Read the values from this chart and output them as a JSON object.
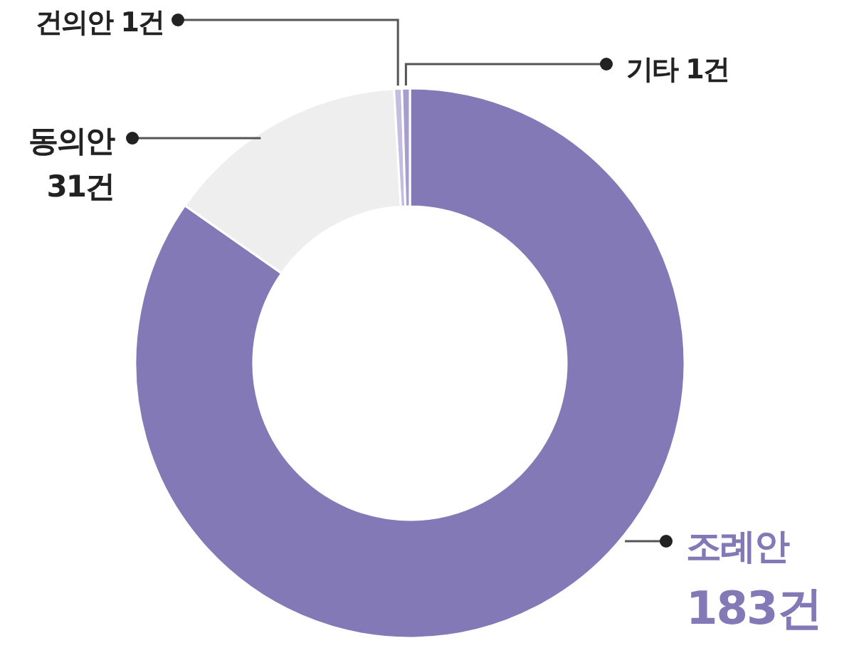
{
  "chart_data": {
    "type": "donut",
    "categories": [
      "조례안",
      "동의안",
      "건의안",
      "기타"
    ],
    "values": [
      183,
      31,
      1,
      1
    ],
    "value_labels": [
      "183건",
      "31건",
      "1건",
      "1건"
    ],
    "colors": [
      "#8379b7",
      "#edeeed",
      "#c5bddf",
      "#a79ed0"
    ]
  }
}
